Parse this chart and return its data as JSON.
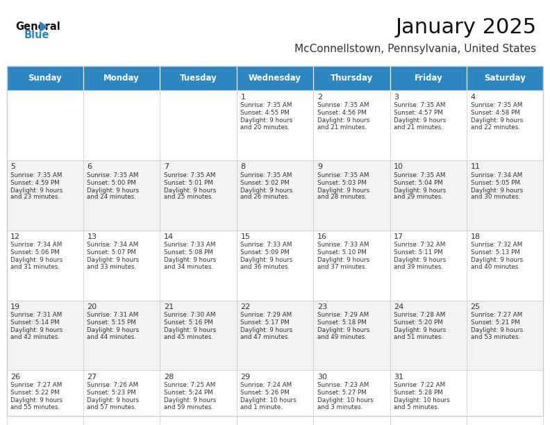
{
  "title": "January 2025",
  "subtitle": "McConnellstown, Pennsylvania, United States",
  "header_bg": "#2E86C1",
  "header_text_color": "#FFFFFF",
  "cell_bg_light": "#FFFFFF",
  "cell_bg_medium": "#F2F2F2",
  "border_color": "#CCCCCC",
  "text_color": "#333333",
  "days_of_week": [
    "Sunday",
    "Monday",
    "Tuesday",
    "Wednesday",
    "Thursday",
    "Friday",
    "Saturday"
  ],
  "calendar": [
    [
      {
        "day": "",
        "sunrise": "",
        "sunset": "",
        "daylight": ""
      },
      {
        "day": "",
        "sunrise": "",
        "sunset": "",
        "daylight": ""
      },
      {
        "day": "",
        "sunrise": "",
        "sunset": "",
        "daylight": ""
      },
      {
        "day": "1",
        "sunrise": "7:35 AM",
        "sunset": "4:55 PM",
        "daylight": "9 hours and 20 minutes."
      },
      {
        "day": "2",
        "sunrise": "7:35 AM",
        "sunset": "4:56 PM",
        "daylight": "9 hours and 21 minutes."
      },
      {
        "day": "3",
        "sunrise": "7:35 AM",
        "sunset": "4:57 PM",
        "daylight": "9 hours and 21 minutes."
      },
      {
        "day": "4",
        "sunrise": "7:35 AM",
        "sunset": "4:58 PM",
        "daylight": "9 hours and 22 minutes."
      }
    ],
    [
      {
        "day": "5",
        "sunrise": "7:35 AM",
        "sunset": "4:59 PM",
        "daylight": "9 hours and 23 minutes."
      },
      {
        "day": "6",
        "sunrise": "7:35 AM",
        "sunset": "5:00 PM",
        "daylight": "9 hours and 24 minutes."
      },
      {
        "day": "7",
        "sunrise": "7:35 AM",
        "sunset": "5:01 PM",
        "daylight": "9 hours and 25 minutes."
      },
      {
        "day": "8",
        "sunrise": "7:35 AM",
        "sunset": "5:02 PM",
        "daylight": "9 hours and 26 minutes."
      },
      {
        "day": "9",
        "sunrise": "7:35 AM",
        "sunset": "5:03 PM",
        "daylight": "9 hours and 28 minutes."
      },
      {
        "day": "10",
        "sunrise": "7:35 AM",
        "sunset": "5:04 PM",
        "daylight": "9 hours and 29 minutes."
      },
      {
        "day": "11",
        "sunrise": "7:34 AM",
        "sunset": "5:05 PM",
        "daylight": "9 hours and 30 minutes."
      }
    ],
    [
      {
        "day": "12",
        "sunrise": "7:34 AM",
        "sunset": "5:06 PM",
        "daylight": "9 hours and 31 minutes."
      },
      {
        "day": "13",
        "sunrise": "7:34 AM",
        "sunset": "5:07 PM",
        "daylight": "9 hours and 33 minutes."
      },
      {
        "day": "14",
        "sunrise": "7:33 AM",
        "sunset": "5:08 PM",
        "daylight": "9 hours and 34 minutes."
      },
      {
        "day": "15",
        "sunrise": "7:33 AM",
        "sunset": "5:09 PM",
        "daylight": "9 hours and 36 minutes."
      },
      {
        "day": "16",
        "sunrise": "7:33 AM",
        "sunset": "5:10 PM",
        "daylight": "9 hours and 37 minutes."
      },
      {
        "day": "17",
        "sunrise": "7:32 AM",
        "sunset": "5:11 PM",
        "daylight": "9 hours and 39 minutes."
      },
      {
        "day": "18",
        "sunrise": "7:32 AM",
        "sunset": "5:13 PM",
        "daylight": "9 hours and 40 minutes."
      }
    ],
    [
      {
        "day": "19",
        "sunrise": "7:31 AM",
        "sunset": "5:14 PM",
        "daylight": "9 hours and 42 minutes."
      },
      {
        "day": "20",
        "sunrise": "7:31 AM",
        "sunset": "5:15 PM",
        "daylight": "9 hours and 44 minutes."
      },
      {
        "day": "21",
        "sunrise": "7:30 AM",
        "sunset": "5:16 PM",
        "daylight": "9 hours and 45 minutes."
      },
      {
        "day": "22",
        "sunrise": "7:29 AM",
        "sunset": "5:17 PM",
        "daylight": "9 hours and 47 minutes."
      },
      {
        "day": "23",
        "sunrise": "7:29 AM",
        "sunset": "5:18 PM",
        "daylight": "9 hours and 49 minutes."
      },
      {
        "day": "24",
        "sunrise": "7:28 AM",
        "sunset": "5:20 PM",
        "daylight": "9 hours and 51 minutes."
      },
      {
        "day": "25",
        "sunrise": "7:27 AM",
        "sunset": "5:21 PM",
        "daylight": "9 hours and 53 minutes."
      }
    ],
    [
      {
        "day": "26",
        "sunrise": "7:27 AM",
        "sunset": "5:22 PM",
        "daylight": "9 hours and 55 minutes."
      },
      {
        "day": "27",
        "sunrise": "7:26 AM",
        "sunset": "5:23 PM",
        "daylight": "9 hours and 57 minutes."
      },
      {
        "day": "28",
        "sunrise": "7:25 AM",
        "sunset": "5:24 PM",
        "daylight": "9 hours and 59 minutes."
      },
      {
        "day": "29",
        "sunrise": "7:24 AM",
        "sunset": "5:26 PM",
        "daylight": "10 hours and 1 minute."
      },
      {
        "day": "30",
        "sunrise": "7:23 AM",
        "sunset": "5:27 PM",
        "daylight": "10 hours and 3 minutes."
      },
      {
        "day": "31",
        "sunrise": "7:22 AM",
        "sunset": "5:28 PM",
        "daylight": "10 hours and 5 minutes."
      },
      {
        "day": "",
        "sunrise": "",
        "sunset": "",
        "daylight": ""
      }
    ]
  ]
}
